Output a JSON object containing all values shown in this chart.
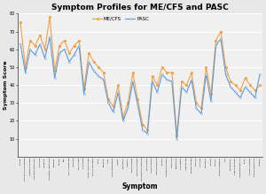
{
  "title": "Symptom Profiles for ME/CFS and PASC",
  "xlabel": "Symptom",
  "ylabel": "Symptom Score",
  "ylim": [
    0,
    80
  ],
  "yticks": [
    10,
    20,
    30,
    40,
    50,
    60,
    70,
    80
  ],
  "legend_labels": [
    "ME/CFS",
    "PASC"
  ],
  "mecfs_color": "#F4A040",
  "pasc_color": "#5A9AE0",
  "fig_color": "#E8E8E8",
  "plot_bg_color": "#F0F0F0",
  "symptoms": [
    "Fatigue",
    "Post-exertional malaise",
    "Unrefreshing sleep",
    "Cognitive impairment",
    "Brain fog",
    "Headache",
    "Orthostatic intolerance",
    "Dizziness",
    "Nausea",
    "Pain",
    "Muscle weakness",
    "Joint pain",
    "Muscle pain",
    "Sore throat",
    "Tender lymph nodes",
    "Flu-like symptoms",
    "Chills",
    "Sweating",
    "Fever",
    "Sleep disturbances",
    "Anxiety",
    "Depression",
    "Irritability",
    "Mood changes",
    "Memory problems",
    "Concentration problems",
    "Word finding",
    "Vision problems",
    "Hearing problems",
    "Tinnitus",
    "Shortness of breath",
    "Chest pain",
    "Palpitations",
    "GI problems",
    "Appetite loss",
    "Weight changes",
    "Hair loss",
    "Skin rash",
    "Numbness",
    "Tingling",
    "Tremors",
    "Balance problems",
    "Falls",
    "Coordination",
    "Speech problems",
    "Swallowing difficulty",
    "Thirst",
    "Urinary problems",
    "Sexual dysfunction",
    "Allergies"
  ],
  "mecfs_values": [
    75,
    50,
    65,
    62,
    68,
    60,
    78,
    48,
    62,
    65,
    58,
    62,
    65,
    38,
    58,
    53,
    50,
    47,
    32,
    28,
    40,
    22,
    30,
    47,
    32,
    18,
    15,
    45,
    40,
    50,
    47,
    47,
    12,
    42,
    40,
    47,
    30,
    27,
    50,
    35,
    65,
    70,
    50,
    42,
    40,
    37,
    44,
    40,
    37,
    40
  ],
  "pasc_values": [
    63,
    47,
    60,
    57,
    63,
    55,
    67,
    44,
    58,
    60,
    53,
    57,
    62,
    35,
    53,
    48,
    45,
    43,
    30,
    25,
    36,
    20,
    27,
    42,
    29,
    15,
    13,
    42,
    36,
    46,
    43,
    42,
    10,
    39,
    36,
    43,
    27,
    24,
    46,
    31,
    62,
    66,
    46,
    39,
    36,
    33,
    39,
    36,
    33,
    46
  ]
}
